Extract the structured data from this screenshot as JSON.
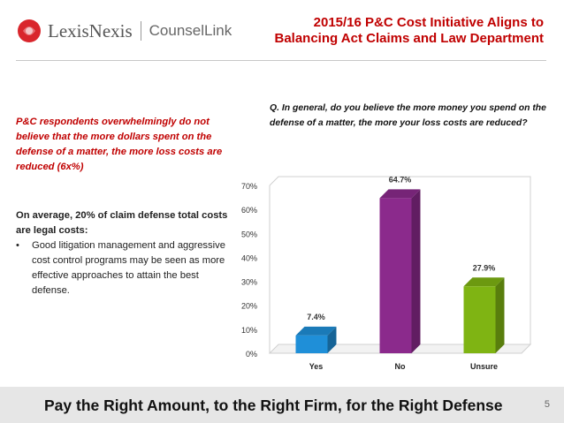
{
  "header": {
    "brand": "LexisNexis",
    "brand_secondary": "CounselLink",
    "title_line1": "2015/16 P&C Cost Initiative Aligns to",
    "title_line2": "Balancing Act Claims and Law Department"
  },
  "left": {
    "italic_text": "P&C respondents overwhelmingly do not believe that the more dollars spent on the defense of a matter, the more loss costs  are reduced (6x%)",
    "avg_heading": "On average, 20% of claim defense total costs are legal costs:",
    "bullet": "Good litigation management and aggressive cost control programs may be seen as more effective approaches to attain the best defense."
  },
  "question": "Q. In general, do you believe the more money you spend on the defense of a matter, the more your loss costs are reduced?",
  "footer": {
    "text": "Pay the Right Amount, to the Right Firm, for the Right Defense",
    "page": "5"
  },
  "colors": {
    "accent_red": "#c00000",
    "yes": "#1f8fd8",
    "no": "#8b2a8c",
    "unsure": "#7fb413"
  },
  "chart_data": {
    "type": "bar",
    "categories": [
      "Yes",
      "No",
      "Unsure"
    ],
    "values": [
      7.4,
      64.7,
      27.9
    ],
    "data_labels": [
      "7.4%",
      "64.7%",
      "27.9%"
    ],
    "ylim": [
      0,
      70
    ],
    "yticks": [
      "0%",
      "10%",
      "20%",
      "30%",
      "40%",
      "50%",
      "60%",
      "70%"
    ],
    "grid": false,
    "title": "",
    "xlabel": "",
    "ylabel": ""
  }
}
